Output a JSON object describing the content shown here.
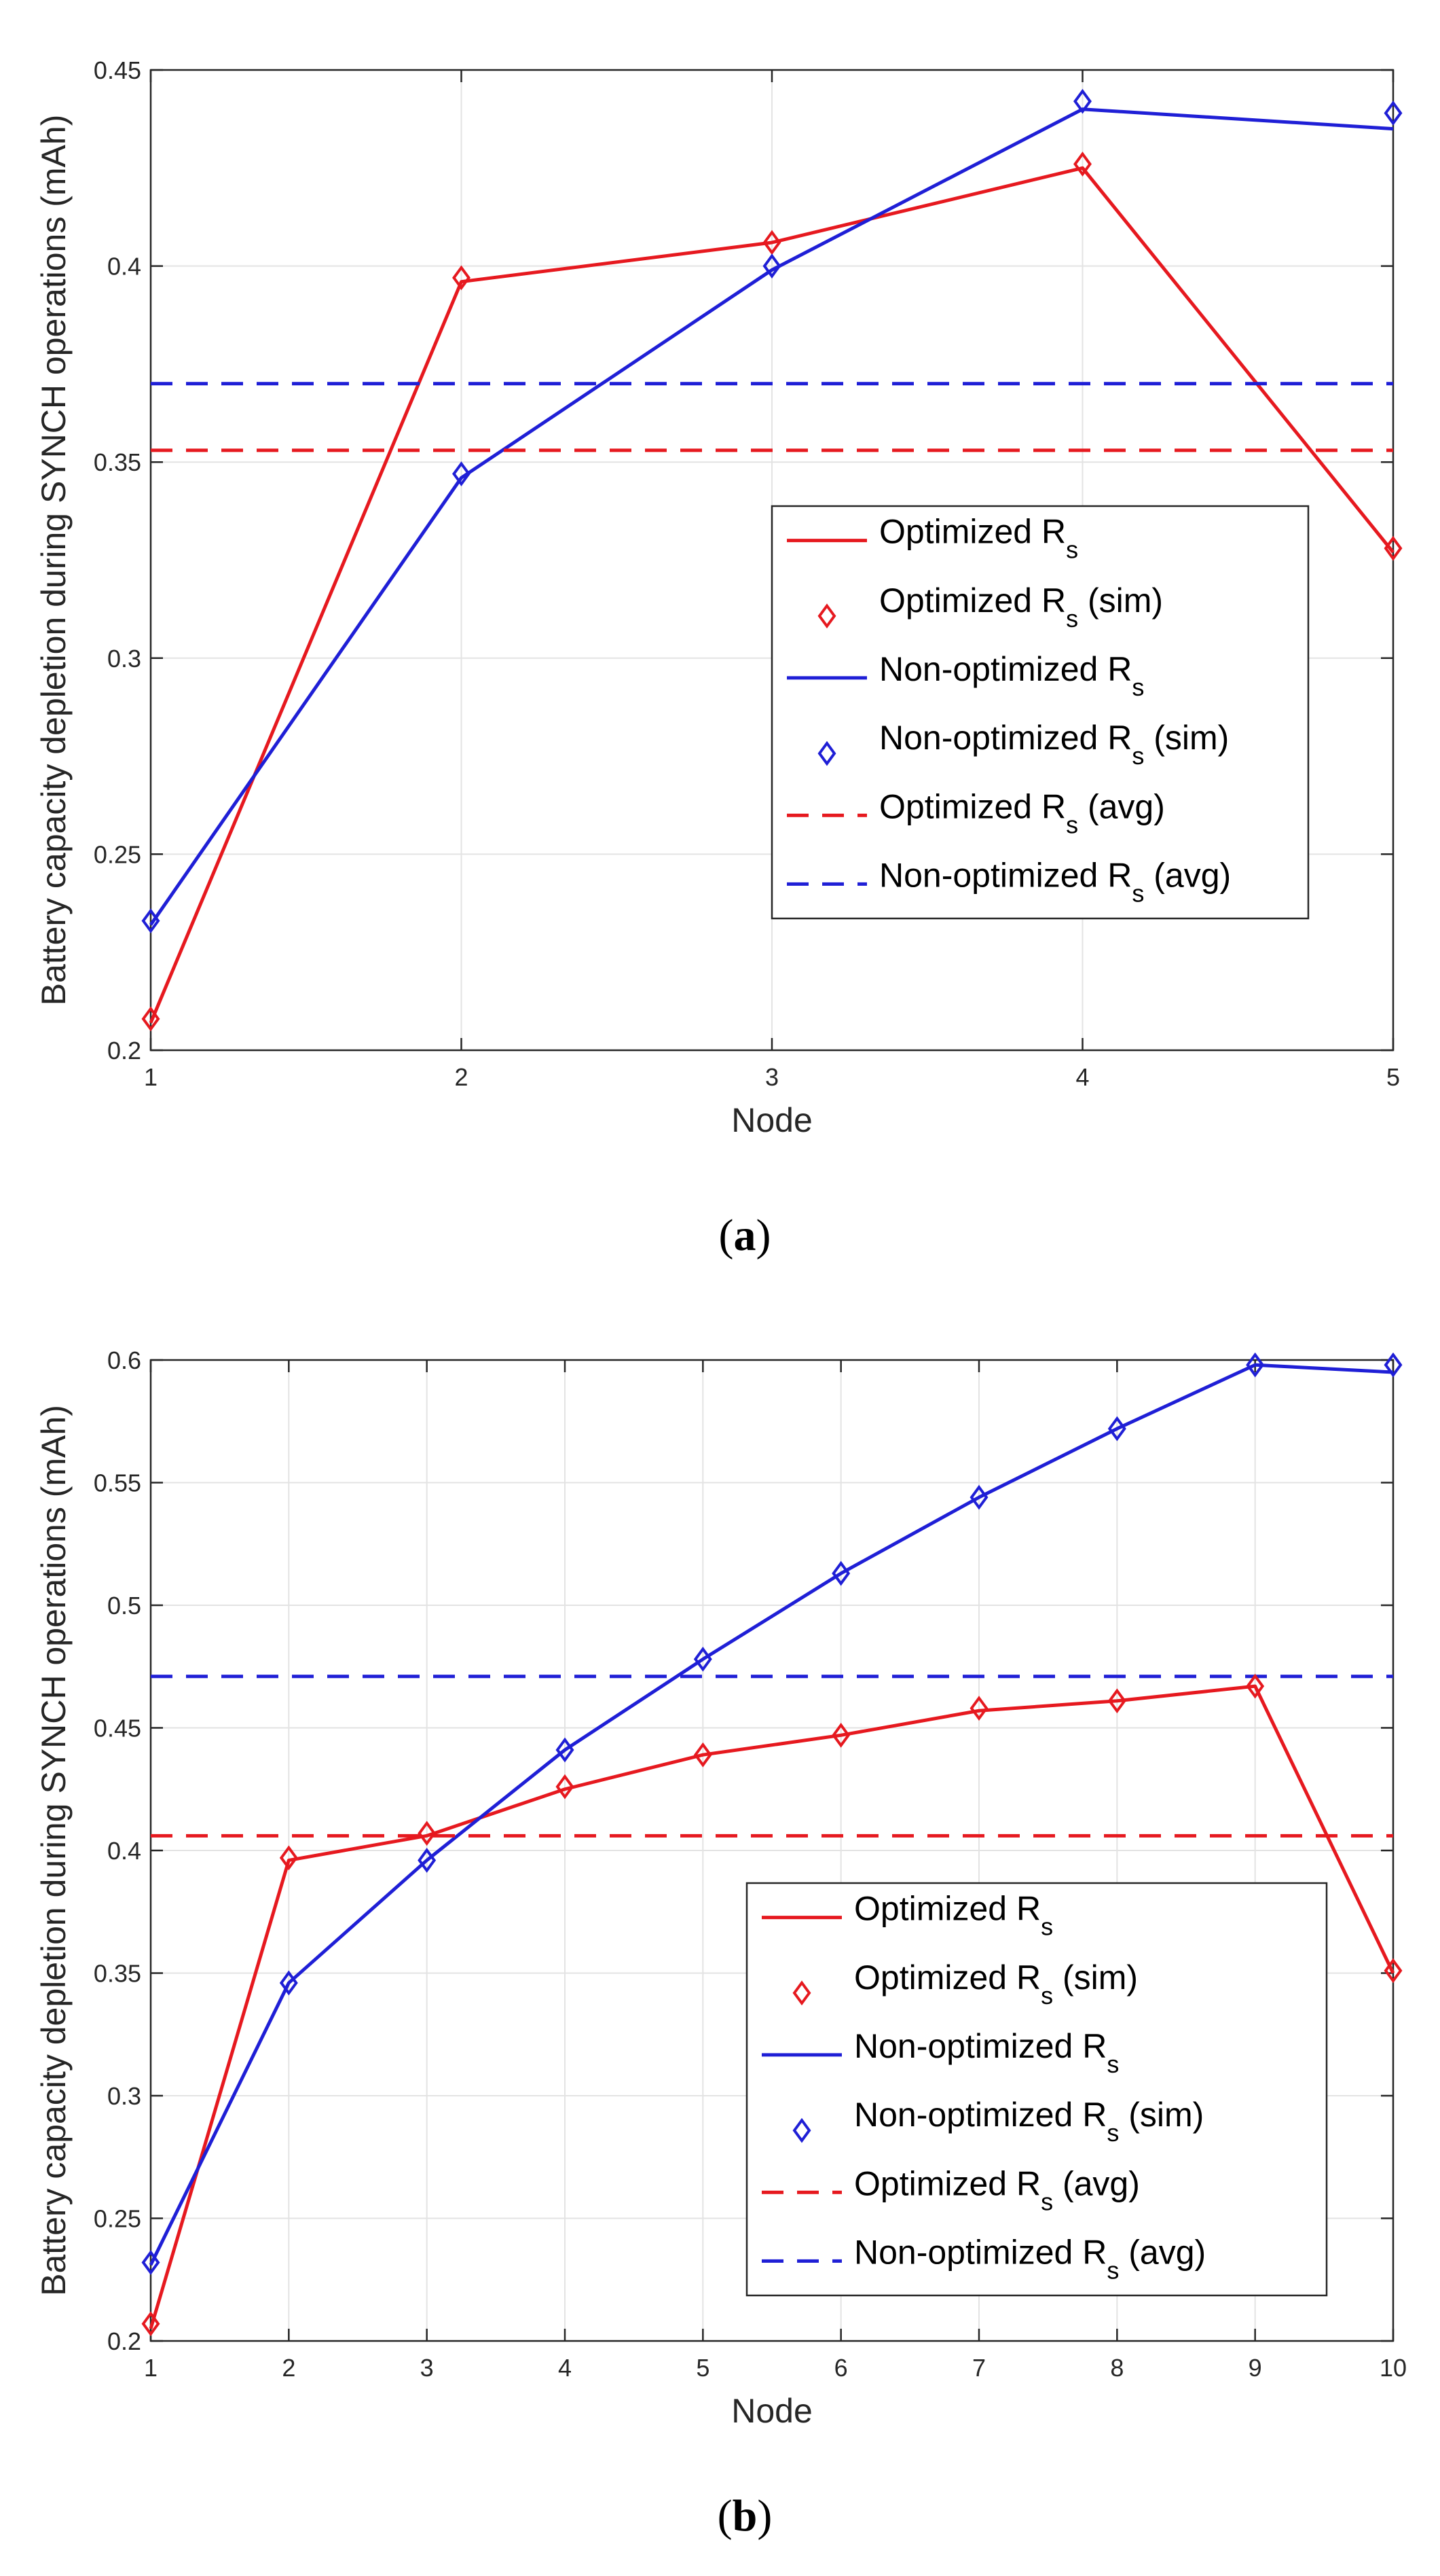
{
  "chart_data": [
    {
      "type": "line",
      "caption_letter": "a",
      "xlabel": "Node",
      "ylabel": "Battery capacity depletion during SYNCH operations (mAh)",
      "xlim": [
        1,
        5
      ],
      "ylim": [
        0.2,
        0.45
      ],
      "xticks": [
        1,
        2,
        3,
        4,
        5
      ],
      "yticks": [
        0.2,
        0.25,
        0.3,
        0.35,
        0.4,
        0.45
      ],
      "ytick_labels": [
        "0.2",
        "0.25",
        "0.3",
        "0.35",
        "0.4",
        "0.45"
      ],
      "grid": true,
      "legend_position": "center-right",
      "x": [
        1,
        2,
        3,
        4,
        5
      ],
      "series": [
        {
          "name": "Optimized R",
          "sub": "s",
          "suffix": "",
          "color": "#e6191f",
          "style": "line",
          "values": [
            0.207,
            0.396,
            0.406,
            0.425,
            0.327
          ]
        },
        {
          "name": "Optimized R",
          "sub": "s",
          "suffix": " (sim)",
          "color": "#e6191f",
          "style": "marker",
          "values": [
            0.208,
            0.397,
            0.406,
            0.426,
            0.328
          ]
        },
        {
          "name": "Non-optimized R",
          "sub": "s",
          "suffix": "",
          "color": "#1f1fd6",
          "style": "line",
          "values": [
            0.232,
            0.346,
            0.399,
            0.44,
            0.435
          ]
        },
        {
          "name": "Non-optimized R",
          "sub": "s",
          "suffix": " (sim)",
          "color": "#1f1fd6",
          "style": "marker",
          "values": [
            0.233,
            0.347,
            0.4,
            0.442,
            0.439
          ]
        },
        {
          "name": "Optimized R",
          "sub": "s",
          "suffix": " (avg)",
          "color": "#e6191f",
          "style": "dash",
          "value": 0.353
        },
        {
          "name": "Non-optimized R",
          "sub": "s",
          "suffix": " (avg)",
          "color": "#1f1fd6",
          "style": "dash",
          "value": 0.37
        }
      ]
    },
    {
      "type": "line",
      "caption_letter": "b",
      "xlabel": "Node",
      "ylabel": "Battery capacity depletion during SYNCH operations (mAh)",
      "xlim": [
        1,
        10
      ],
      "ylim": [
        0.2,
        0.6
      ],
      "xticks": [
        1,
        2,
        3,
        4,
        5,
        6,
        7,
        8,
        9,
        10
      ],
      "yticks": [
        0.2,
        0.25,
        0.3,
        0.35,
        0.4,
        0.45,
        0.5,
        0.55,
        0.6
      ],
      "ytick_labels": [
        "0.2",
        "0.25",
        "0.3",
        "0.35",
        "0.4",
        "0.45",
        "0.5",
        "0.55",
        "0.6"
      ],
      "grid": true,
      "legend_position": "center-right",
      "x": [
        1,
        2,
        3,
        4,
        5,
        6,
        7,
        8,
        9,
        10
      ],
      "series": [
        {
          "name": "Optimized R",
          "sub": "s",
          "suffix": "",
          "color": "#e6191f",
          "style": "line",
          "values": [
            0.205,
            0.396,
            0.406,
            0.425,
            0.439,
            0.447,
            0.457,
            0.461,
            0.467,
            0.35
          ]
        },
        {
          "name": "Optimized R",
          "sub": "s",
          "suffix": " (sim)",
          "color": "#e6191f",
          "style": "marker",
          "values": [
            0.207,
            0.397,
            0.407,
            0.426,
            0.439,
            0.447,
            0.458,
            0.461,
            0.467,
            0.351
          ]
        },
        {
          "name": "Non-optimized R",
          "sub": "s",
          "suffix": "",
          "color": "#1f1fd6",
          "style": "line",
          "values": [
            0.231,
            0.346,
            0.396,
            0.441,
            0.478,
            0.513,
            0.544,
            0.572,
            0.598,
            0.595
          ]
        },
        {
          "name": "Non-optimized R",
          "sub": "s",
          "suffix": " (sim)",
          "color": "#1f1fd6",
          "style": "marker",
          "values": [
            0.232,
            0.346,
            0.396,
            0.441,
            0.478,
            0.513,
            0.544,
            0.572,
            0.598,
            0.598
          ]
        },
        {
          "name": "Optimized R",
          "sub": "s",
          "suffix": " (avg)",
          "color": "#e6191f",
          "style": "dash",
          "value": 0.406
        },
        {
          "name": "Non-optimized R",
          "sub": "s",
          "suffix": " (avg)",
          "color": "#1f1fd6",
          "style": "dash",
          "value": 0.471
        }
      ]
    }
  ]
}
